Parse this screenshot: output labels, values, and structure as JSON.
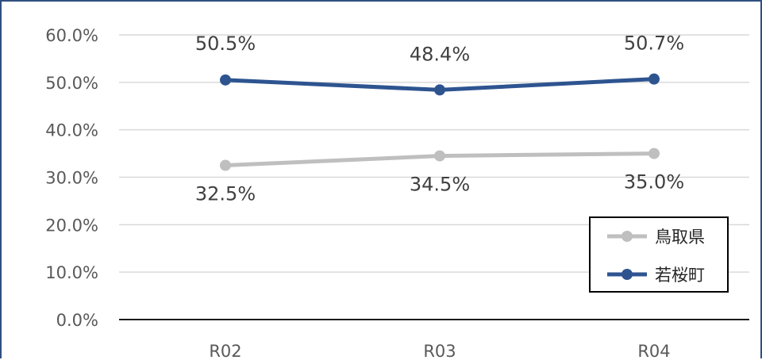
{
  "chart_data": {
    "type": "line",
    "categories": [
      "R02",
      "R03",
      "R04"
    ],
    "series": [
      {
        "name": "鳥取県",
        "values": [
          32.5,
          34.5,
          35.0
        ],
        "labels": [
          "32.5%",
          "34.5%",
          "35.0%"
        ],
        "color": "#bfbfbf"
      },
      {
        "name": "若桜町",
        "values": [
          50.5,
          48.4,
          50.7
        ],
        "labels": [
          "50.5%",
          "48.4%",
          "50.7%"
        ],
        "color": "#2e5490"
      }
    ],
    "ylim": [
      0,
      60
    ],
    "yticks": [
      0,
      10,
      20,
      30,
      40,
      50,
      60
    ],
    "ytick_labels": [
      "0.0%",
      "10.0%",
      "20.0%",
      "30.0%",
      "40.0%",
      "50.0%",
      "60.0%"
    ],
    "grid": true,
    "legend": "bottom-right",
    "title": "",
    "xlabel": "",
    "ylabel": ""
  }
}
